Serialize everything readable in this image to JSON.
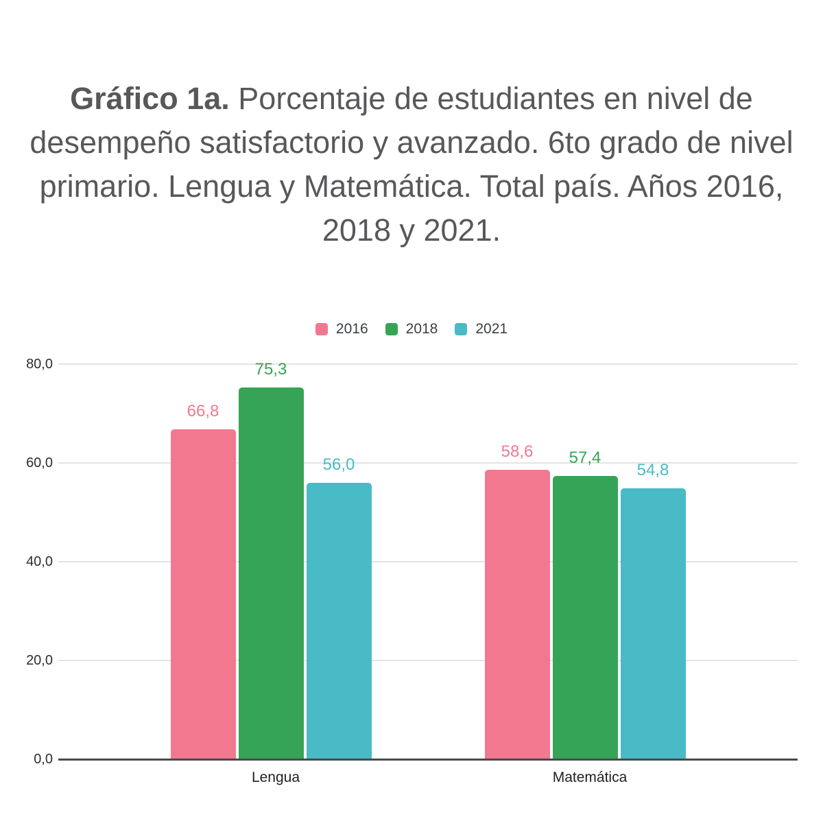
{
  "title": {
    "bold": "Gráfico 1a.",
    "line1_rest": "Porcentaje de estudiantes en nivel",
    "line2": "de desempeño satisfactorio y avanzado. 6to",
    "line3": "grado de nivel primario. Lengua y Matemática.",
    "line4": "Total país. Años 2016, 2018 y 2021."
  },
  "chart_data": {
    "type": "bar",
    "title": "Gráfico 1a. Porcentaje de estudiantes en nivel de desempeño satisfactorio y avanzado. 6to grado de nivel primario. Lengua y Matemática. Total país. Años 2016, 2018 y 2021.",
    "categories": [
      "Lengua",
      "Matemática"
    ],
    "series": [
      {
        "name": "2016",
        "color": "#f2788f",
        "values": [
          66.8,
          58.6
        ],
        "value_labels": [
          "66,8",
          "58,6"
        ]
      },
      {
        "name": "2018",
        "color": "#36a457",
        "values": [
          75.3,
          57.4
        ],
        "value_labels": [
          "75,3",
          "57,4"
        ]
      },
      {
        "name": "2021",
        "color": "#48bbc7",
        "values": [
          56.0,
          54.8
        ],
        "value_labels": [
          "56,0",
          "54,8"
        ]
      }
    ],
    "xlabel": "",
    "ylabel": "",
    "ylim": [
      0,
      80
    ],
    "yticks": [
      {
        "value": 0,
        "label": "0,0"
      },
      {
        "value": 20,
        "label": "20,0"
      },
      {
        "value": 40,
        "label": "40,0"
      },
      {
        "value": 60,
        "label": "60,0"
      },
      {
        "value": 80,
        "label": "80,0"
      }
    ],
    "grid": true,
    "legend_position": "top-center",
    "value_labels_shown": true,
    "value_label_color": "same-as-bar"
  }
}
